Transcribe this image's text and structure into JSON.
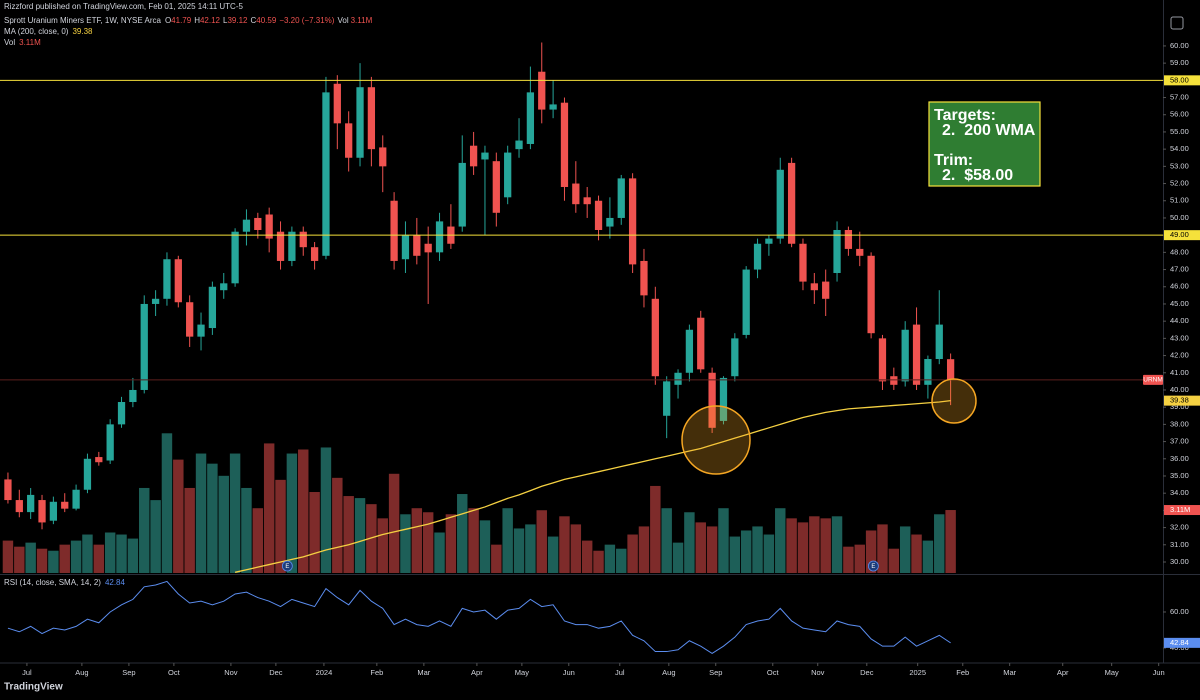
{
  "header": {
    "publisher": "Rizzford published on TradingView.com, Feb 01, 2025 14:11 UTC-5",
    "ohlc_labels": [
      "O",
      "H",
      "L",
      "C"
    ],
    "change": "−3.20 (−7.31%)",
    "logo": "TradingView"
  },
  "chart_data": {
    "type": "candlestick",
    "title": "Sprott Uranium Miners ETF, 1W, NYSE Arca",
    "symbol": "URNM",
    "colors": {
      "up": "#26a69a",
      "down": "#ef5350",
      "up_volume": "#1d5f58",
      "down_volume": "#7e2b2a"
    },
    "x": [
      0,
      1,
      2,
      3,
      4,
      5,
      6,
      7,
      8,
      9,
      10,
      11,
      12,
      13,
      14,
      15,
      16,
      17,
      18,
      19,
      20,
      21,
      22,
      23,
      24,
      25,
      26,
      27,
      28,
      29,
      30,
      31,
      32,
      33,
      34,
      35,
      36,
      37,
      38,
      39,
      40,
      41,
      42,
      43,
      44,
      45,
      46,
      47,
      48,
      49,
      50,
      51,
      52,
      53,
      54,
      55,
      56,
      57,
      58,
      59,
      60,
      61,
      62,
      63,
      64,
      65,
      66,
      67,
      68,
      69,
      70,
      71,
      72,
      73,
      74,
      75,
      76,
      77,
      78,
      79,
      80,
      81,
      82,
      83
    ],
    "candles": [
      [
        34.8,
        35.2,
        33.4,
        33.6
      ],
      [
        33.6,
        34.2,
        32.6,
        32.9
      ],
      [
        32.9,
        34.3,
        32.5,
        33.9
      ],
      [
        33.6,
        33.9,
        31.9,
        32.3
      ],
      [
        32.4,
        33.8,
        32.2,
        33.5
      ],
      [
        33.5,
        34.0,
        32.9,
        33.1
      ],
      [
        33.1,
        34.5,
        33.0,
        34.2
      ],
      [
        34.2,
        36.3,
        34.0,
        36.0
      ],
      [
        36.1,
        36.4,
        35.6,
        35.8
      ],
      [
        35.9,
        38.3,
        35.7,
        38.0
      ],
      [
        38.0,
        39.6,
        37.8,
        39.3
      ],
      [
        39.3,
        40.7,
        39.0,
        40.0
      ],
      [
        40.0,
        45.5,
        39.8,
        45.0
      ],
      [
        45.0,
        45.8,
        44.3,
        45.3
      ],
      [
        45.3,
        48.0,
        44.9,
        47.6
      ],
      [
        47.6,
        47.8,
        44.8,
        45.1
      ],
      [
        45.1,
        45.5,
        42.5,
        43.1
      ],
      [
        43.1,
        44.5,
        42.3,
        43.8
      ],
      [
        43.6,
        46.3,
        43.2,
        46.0
      ],
      [
        45.8,
        46.8,
        45.3,
        46.2
      ],
      [
        46.2,
        49.4,
        46.0,
        49.2
      ],
      [
        49.2,
        50.5,
        48.4,
        49.9
      ],
      [
        50.0,
        50.3,
        48.8,
        49.3
      ],
      [
        50.2,
        50.6,
        48.0,
        48.8
      ],
      [
        49.2,
        49.8,
        47.0,
        47.5
      ],
      [
        47.5,
        49.5,
        47.2,
        49.2
      ],
      [
        49.2,
        49.5,
        47.8,
        48.3
      ],
      [
        48.3,
        48.6,
        47.0,
        47.5
      ],
      [
        47.8,
        58.2,
        47.6,
        57.3
      ],
      [
        57.8,
        58.3,
        54.0,
        55.5
      ],
      [
        55.5,
        56.2,
        52.7,
        53.5
      ],
      [
        53.5,
        59.0,
        53.0,
        57.6
      ],
      [
        57.6,
        58.2,
        53.0,
        54.0
      ],
      [
        54.1,
        54.8,
        51.5,
        53.0
      ],
      [
        51.0,
        51.5,
        47.0,
        47.5
      ],
      [
        47.6,
        49.8,
        46.8,
        49.0
      ],
      [
        49.0,
        50.0,
        47.3,
        47.8
      ],
      [
        48.5,
        49.5,
        45.0,
        48.0
      ],
      [
        48.0,
        50.3,
        47.5,
        49.8
      ],
      [
        49.5,
        50.8,
        48.2,
        48.5
      ],
      [
        49.5,
        54.8,
        49.2,
        53.2
      ],
      [
        54.2,
        55.0,
        52.5,
        53.0
      ],
      [
        53.4,
        54.2,
        49.0,
        53.8
      ],
      [
        53.3,
        53.8,
        49.5,
        50.3
      ],
      [
        51.2,
        54.2,
        50.8,
        53.8
      ],
      [
        54.0,
        55.8,
        53.5,
        54.5
      ],
      [
        54.3,
        58.8,
        54.0,
        57.3
      ],
      [
        58.5,
        60.2,
        55.5,
        56.3
      ],
      [
        56.3,
        58.0,
        55.8,
        56.6
      ],
      [
        56.7,
        57.0,
        51.0,
        51.8
      ],
      [
        52.0,
        53.3,
        50.3,
        50.8
      ],
      [
        51.2,
        51.8,
        50.0,
        50.8
      ],
      [
        51.0,
        51.3,
        48.7,
        49.3
      ],
      [
        49.5,
        51.2,
        48.8,
        50.0
      ],
      [
        50.0,
        52.5,
        49.6,
        52.3
      ],
      [
        52.3,
        52.6,
        46.8,
        47.3
      ],
      [
        47.5,
        48.2,
        44.8,
        45.5
      ],
      [
        45.3,
        46.0,
        40.3,
        40.8
      ],
      [
        38.5,
        40.8,
        37.2,
        40.5
      ],
      [
        40.3,
        41.2,
        39.5,
        41.0
      ],
      [
        41.0,
        43.8,
        40.5,
        43.5
      ],
      [
        44.2,
        44.6,
        41.0,
        41.2
      ],
      [
        41.0,
        41.3,
        37.5,
        37.8
      ],
      [
        38.2,
        40.8,
        38.0,
        40.7
      ],
      [
        40.8,
        43.3,
        40.5,
        43.0
      ],
      [
        43.2,
        47.2,
        43.0,
        47.0
      ],
      [
        47.0,
        48.8,
        46.5,
        48.5
      ],
      [
        48.5,
        49.0,
        47.8,
        48.8
      ],
      [
        48.8,
        53.5,
        48.5,
        52.8
      ],
      [
        53.2,
        53.5,
        48.3,
        48.5
      ],
      [
        48.5,
        48.8,
        45.8,
        46.3
      ],
      [
        46.2,
        46.8,
        45.0,
        45.8
      ],
      [
        46.3,
        47.0,
        44.3,
        45.3
      ],
      [
        46.8,
        49.8,
        46.3,
        49.3
      ],
      [
        49.3,
        49.5,
        47.8,
        48.2
      ],
      [
        48.2,
        49.2,
        47.2,
        47.8
      ],
      [
        47.8,
        48.0,
        43.0,
        43.3
      ],
      [
        43.0,
        43.2,
        40.0,
        40.5
      ],
      [
        40.8,
        41.3,
        40.0,
        40.3
      ],
      [
        40.5,
        44.0,
        40.2,
        43.5
      ],
      [
        43.8,
        44.8,
        40.0,
        40.3
      ],
      [
        40.3,
        42.0,
        39.5,
        41.8
      ],
      [
        41.8,
        45.8,
        41.5,
        43.8
      ],
      [
        41.79,
        42.12,
        39.12,
        40.59
      ]
    ],
    "xlim": [
      -0.7,
      101.7
    ],
    "xticks": [
      {
        "value": 1.67,
        "label": "Jul"
      },
      {
        "value": 6.51,
        "label": "Aug"
      },
      {
        "value": 10.65,
        "label": "Sep"
      },
      {
        "value": 14.61,
        "label": "Oct"
      },
      {
        "value": 19.63,
        "label": "Nov"
      },
      {
        "value": 23.59,
        "label": "Dec"
      },
      {
        "value": 27.82,
        "label": "2024"
      },
      {
        "value": 32.48,
        "label": "Feb"
      },
      {
        "value": 36.62,
        "label": "Mar"
      },
      {
        "value": 41.29,
        "label": "Apr"
      },
      {
        "value": 45.25,
        "label": "May"
      },
      {
        "value": 49.38,
        "label": "Jun"
      },
      {
        "value": 53.87,
        "label": "Jul"
      },
      {
        "value": 58.19,
        "label": "Aug"
      },
      {
        "value": 62.32,
        "label": "Sep"
      },
      {
        "value": 67.34,
        "label": "Oct"
      },
      {
        "value": 71.3,
        "label": "Nov"
      },
      {
        "value": 75.62,
        "label": "Dec"
      },
      {
        "value": 80.1,
        "label": "2025"
      },
      {
        "value": 84.07,
        "label": "Feb"
      },
      {
        "value": 88.2,
        "label": "Mar"
      },
      {
        "value": 92.87,
        "label": "Apr"
      },
      {
        "value": 97.18,
        "label": "May"
      },
      {
        "value": 101.32,
        "label": "Jun"
      }
    ],
    "ylim": [
      29.36,
      62.67
    ],
    "yticks": [
      {
        "value": 30,
        "label": "30.00"
      },
      {
        "value": 31,
        "label": "31.00"
      },
      {
        "value": 32,
        "label": "32.00"
      },
      {
        "value": 33,
        "label": "33.00"
      },
      {
        "value": 34,
        "label": "34.00"
      },
      {
        "value": 35,
        "label": "35.00"
      },
      {
        "value": 36,
        "label": "36.00"
      },
      {
        "value": 37,
        "label": "37.00"
      },
      {
        "value": 38,
        "label": "38.00"
      },
      {
        "value": 39,
        "label": "39.00"
      },
      {
        "value": 40,
        "label": "40.00"
      },
      {
        "value": 41,
        "label": "41.00"
      },
      {
        "value": 42,
        "label": "42.00"
      },
      {
        "value": 43,
        "label": "43.00"
      },
      {
        "value": 44,
        "label": "44.00"
      },
      {
        "value": 45,
        "label": "45.00"
      },
      {
        "value": 46,
        "label": "46.00"
      },
      {
        "value": 47,
        "label": "47.00"
      },
      {
        "value": 48,
        "label": "48.00"
      },
      {
        "value": 49,
        "label": "49.00"
      },
      {
        "value": 50,
        "label": "50.00"
      },
      {
        "value": 51,
        "label": "51.00"
      },
      {
        "value": 52,
        "label": "52.00"
      },
      {
        "value": 53,
        "label": "53.00"
      },
      {
        "value": 54,
        "label": "54.00"
      },
      {
        "value": 55,
        "label": "55.00"
      },
      {
        "value": 56,
        "label": "56.00"
      },
      {
        "value": 57,
        "label": "57.00"
      },
      {
        "value": 58,
        "label": "58.00"
      },
      {
        "value": 59,
        "label": "59.00"
      },
      {
        "value": 60,
        "label": "60.00"
      }
    ],
    "levels": [
      {
        "value": 58,
        "label": "58.00"
      },
      {
        "value": 49,
        "label": "49.00"
      }
    ],
    "level_color": "#f5e13b",
    "ma": {
      "name": "MA (200, close, 0)",
      "color": "#f5d142",
      "values": [
        null,
        null,
        null,
        null,
        null,
        null,
        null,
        null,
        null,
        null,
        null,
        null,
        null,
        null,
        null,
        null,
        null,
        null,
        null,
        null,
        29.4,
        29.55,
        29.7,
        29.85,
        30.0,
        30.15,
        30.3,
        30.5,
        30.7,
        30.85,
        31.0,
        31.2,
        31.4,
        31.6,
        31.75,
        31.9,
        32.05,
        32.2,
        32.4,
        32.6,
        32.8,
        33.0,
        33.2,
        33.45,
        33.7,
        33.9,
        34.15,
        34.4,
        34.6,
        34.8,
        34.95,
        35.1,
        35.25,
        35.4,
        35.55,
        35.7,
        35.85,
        36.0,
        36.15,
        36.3,
        36.45,
        36.6,
        36.8,
        37.0,
        37.2,
        37.4,
        37.6,
        37.8,
        38.0,
        38.2,
        38.4,
        38.55,
        38.7,
        38.8,
        38.9,
        38.95,
        39.0,
        39.05,
        39.1,
        39.15,
        39.2,
        39.25,
        39.3,
        39.38
      ]
    },
    "volume": {
      "name": "Vol",
      "ylim": [
        0,
        28300000
      ],
      "values": [
        1600000,
        1300000,
        1500000,
        1200000,
        1100000,
        1400000,
        1600000,
        1900000,
        1400000,
        2000000,
        1900000,
        1700000,
        4200000,
        3600000,
        6900000,
        5600000,
        4200000,
        5900000,
        5400000,
        4800000,
        5900000,
        4200000,
        3200000,
        6400000,
        4600000,
        5900000,
        6100000,
        4000000,
        6200000,
        4700000,
        3800000,
        3700000,
        3400000,
        2700000,
        4900000,
        2900000,
        3200000,
        3000000,
        2000000,
        2900000,
        3900000,
        3200000,
        2600000,
        1400000,
        3200000,
        2200000,
        2400000,
        3100000,
        1800000,
        2800000,
        2400000,
        1600000,
        1100000,
        1400000,
        1200000,
        1900000,
        2300000,
        4300000,
        3200000,
        1500000,
        3000000,
        2500000,
        2300000,
        3200000,
        1800000,
        2100000,
        2300000,
        1900000,
        3200000,
        2700000,
        2500000,
        2800000,
        2700000,
        2800000,
        1300000,
        1400000,
        2100000,
        2400000,
        1200000,
        2300000,
        1900000,
        1600000,
        2900000,
        3110000
      ],
      "value_labels": [
        null,
        null,
        null,
        null,
        null,
        null,
        null,
        null,
        null,
        null,
        null,
        null,
        null,
        null,
        null,
        null,
        null,
        null,
        null,
        null,
        null,
        null,
        null,
        null,
        null,
        null,
        null,
        null,
        null,
        null,
        null,
        null,
        null,
        null,
        null,
        null,
        null,
        null,
        null,
        null,
        null,
        null,
        null,
        null,
        null,
        null,
        null,
        null,
        null,
        null,
        null,
        null,
        null,
        null,
        null,
        null,
        null,
        null,
        null,
        null,
        null,
        null,
        null,
        null,
        null,
        null,
        null,
        null,
        null,
        null,
        null,
        null,
        null,
        null,
        null,
        null,
        null,
        null,
        null,
        null,
        null,
        null,
        null,
        "3.11M"
      ]
    },
    "rsi": {
      "name": "RSI (14, close, SMA, 14, 2)",
      "color": "#5b8def",
      "ylim": [
        32.2,
        80
      ],
      "yticks": [
        {
          "value": 60,
          "label": "60.00"
        },
        {
          "value": 40,
          "label": "40.00"
        }
      ],
      "values": [
        51,
        49,
        52,
        48,
        51,
        50,
        52,
        56,
        54,
        60,
        64,
        67,
        74,
        75,
        77,
        70,
        65,
        66,
        64,
        66,
        70,
        71,
        68,
        66,
        63,
        67,
        65,
        63,
        73,
        68,
        64,
        72,
        66,
        62,
        53,
        56,
        53,
        52,
        55,
        52,
        62,
        60,
        61,
        56,
        61,
        62,
        67,
        63,
        64,
        55,
        53,
        53,
        51,
        52,
        55,
        47,
        44,
        38,
        38,
        39,
        44,
        41,
        37,
        41,
        46,
        53,
        55,
        56,
        62,
        55,
        51,
        50,
        49,
        55,
        53,
        52,
        45,
        41,
        41,
        46,
        41,
        44,
        47,
        42.84
      ]
    },
    "earnings_label": "E",
    "annotation": {
      "lines": [
        "Targets:",
        "2.  200 WMA",
        "Trim:",
        "2.  $58.00"
      ]
    }
  }
}
